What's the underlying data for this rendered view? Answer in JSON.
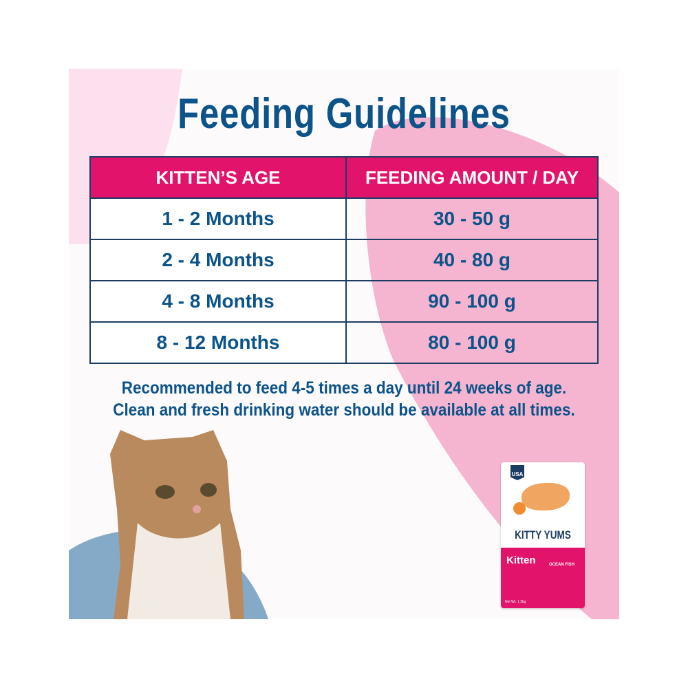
{
  "title": "Feeding Guidelines",
  "table": {
    "headers": [
      "KITTEN’S AGE",
      "FEEDING AMOUNT / DAY"
    ],
    "rows": [
      {
        "age": "1 - 2 Months",
        "amount": "30 - 50 g"
      },
      {
        "age": "2 - 4 Months",
        "amount": "40 - 80 g"
      },
      {
        "age": "4 - 8 Months",
        "amount": "90 - 100 g"
      },
      {
        "age": "8 - 12 Months",
        "amount": "80 - 100 g"
      }
    ]
  },
  "notes": [
    "Recommended to feed 4-5 times a day until 24 weeks of age.",
    "Clean and fresh drinking water should be available at all times."
  ],
  "package": {
    "badge": "USA",
    "brand": "KITTY YUMS",
    "variant": "Kitten",
    "flavor": "OCEAN FISH",
    "weight": "Net Wt. 1.2kg"
  },
  "colors": {
    "title": "#0b5389",
    "header": "#e2136b",
    "pink_blob": "#f5b5d0",
    "light_pink": "#fde0ee",
    "blue_blob": "#85aac8"
  }
}
